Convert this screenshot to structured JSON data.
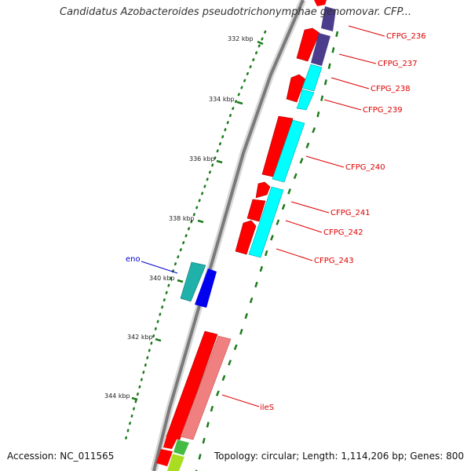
{
  "title": "Candidatus Azobacteroides pseudotrichonymphae genomovar. CFP...",
  "accession": "Accession: NC_011565",
  "topology": "Topology: circular; Length: 1,114,206 bp; Genes: 800",
  "colors": {
    "backbone": "#808080",
    "tick": "#1a7a1a",
    "cds_forward": "#ff0000",
    "cds_reverse_cyan": "#00ffff",
    "cds_reverse_purple": "#4b3c8c",
    "cds_light_red": "#f08080",
    "cds_teal": "#20b2aa",
    "cds_blue": "#0000ee",
    "cds_green": "#44bb44",
    "label_red": "#dd0000",
    "label_blue": "#0000cc"
  },
  "kbp_labels": [
    "332 kbp",
    "334 kbp",
    "336 kbp",
    "338 kbp",
    "340 kbp",
    "342 kbp",
    "344 kbp"
  ],
  "gene_labels": [
    "CFPG_236",
    "CFPG_237",
    "CFPG_238",
    "CFPG_239",
    "CFPG_240",
    "CFPG_241",
    "CFPG_242",
    "CFPG_243",
    "eno",
    "ileS"
  ]
}
